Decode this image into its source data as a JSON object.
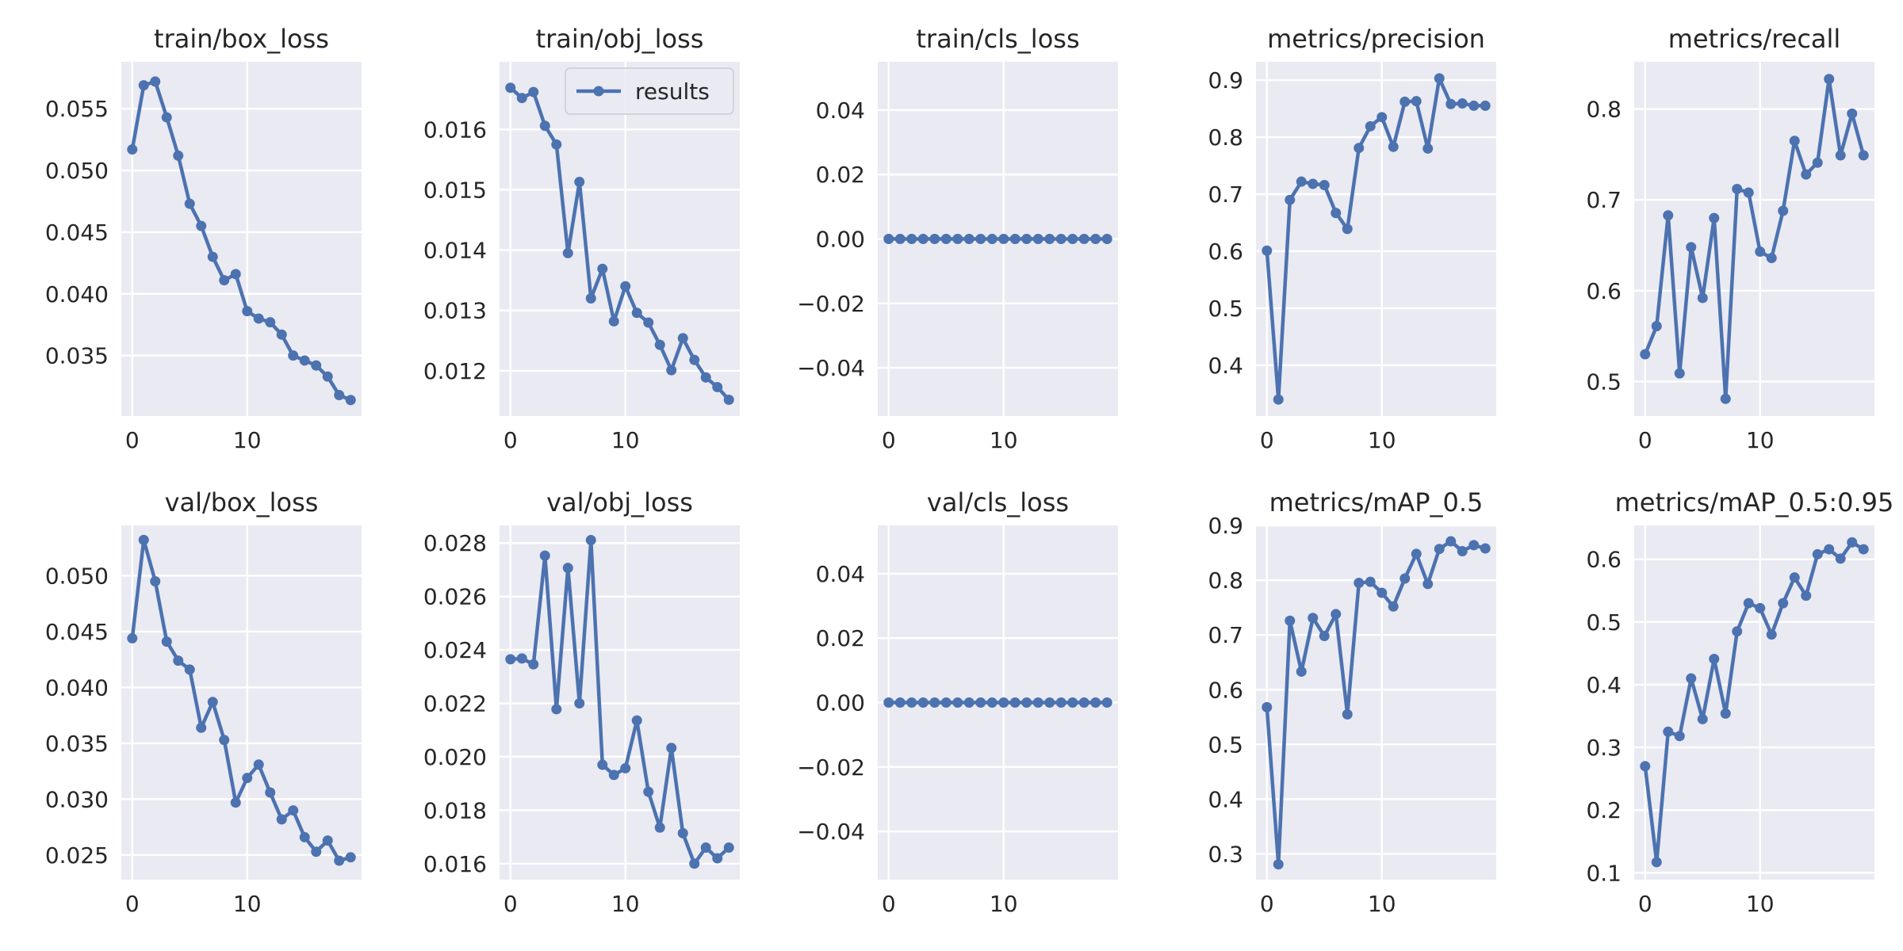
{
  "style": {
    "line_color": "#4c72b0",
    "axes_facecolor": "#eaeaf2",
    "grid_color": "#ffffff",
    "text_color": "#262626"
  },
  "legend": {
    "label": "results",
    "placement": "upper right",
    "panel": "train/obj_loss"
  },
  "chart_data": [
    {
      "type": "line",
      "title": "train/box_loss",
      "xlim": [
        -0.95,
        19.95
      ],
      "ylim": [
        0.0301,
        0.0588
      ],
      "xticks": [
        0,
        10
      ],
      "xtick_labels": [
        "0",
        "10"
      ],
      "yticks": [
        0.035,
        0.04,
        0.045,
        0.05,
        0.055
      ],
      "ytick_labels": [
        "0.035",
        "0.040",
        "0.045",
        "0.050",
        "0.055"
      ],
      "grid": true,
      "series": [
        {
          "name": "results",
          "x": [
            0,
            1,
            2,
            3,
            4,
            5,
            6,
            7,
            8,
            9,
            10,
            11,
            12,
            13,
            14,
            15,
            16,
            17,
            18,
            19
          ],
          "y": [
            0.0517,
            0.0569,
            0.0572,
            0.0543,
            0.0512,
            0.0473,
            0.0455,
            0.043,
            0.0411,
            0.0416,
            0.0386,
            0.038,
            0.0377,
            0.0367,
            0.035,
            0.0346,
            0.0342,
            0.0333,
            0.0318,
            0.0314
          ]
        }
      ]
    },
    {
      "type": "line",
      "title": "train/obj_loss",
      "xlim": [
        -0.95,
        19.95
      ],
      "ylim": [
        0.01125,
        0.01712
      ],
      "xticks": [
        0,
        10
      ],
      "xtick_labels": [
        "0",
        "10"
      ],
      "yticks": [
        0.012,
        0.013,
        0.014,
        0.015,
        0.016
      ],
      "ytick_labels": [
        "0.012",
        "0.013",
        "0.014",
        "0.015",
        "0.016"
      ],
      "grid": true,
      "series": [
        {
          "name": "results",
          "x": [
            0,
            1,
            2,
            3,
            4,
            5,
            6,
            7,
            8,
            9,
            10,
            11,
            12,
            13,
            14,
            15,
            16,
            17,
            18,
            19
          ],
          "y": [
            0.01669,
            0.01652,
            0.01662,
            0.01606,
            0.01575,
            0.01395,
            0.01513,
            0.0132,
            0.01369,
            0.01282,
            0.0134,
            0.01296,
            0.0128,
            0.01243,
            0.01201,
            0.01254,
            0.01218,
            0.01189,
            0.01173,
            0.01152
          ]
        }
      ]
    },
    {
      "type": "line",
      "title": "train/cls_loss",
      "xlim": [
        -0.95,
        19.95
      ],
      "ylim": [
        -0.055,
        0.055
      ],
      "xticks": [
        0,
        10
      ],
      "xtick_labels": [
        "0",
        "10"
      ],
      "yticks": [
        -0.04,
        -0.02,
        0.0,
        0.02,
        0.04
      ],
      "ytick_labels": [
        "−0.04",
        "−0.02",
        "0.00",
        "0.02",
        "0.04"
      ],
      "grid": true,
      "series": [
        {
          "name": "results",
          "x": [
            0,
            1,
            2,
            3,
            4,
            5,
            6,
            7,
            8,
            9,
            10,
            11,
            12,
            13,
            14,
            15,
            16,
            17,
            18,
            19
          ],
          "y": [
            0,
            0,
            0,
            0,
            0,
            0,
            0,
            0,
            0,
            0,
            0,
            0,
            0,
            0,
            0,
            0,
            0,
            0,
            0,
            0
          ]
        }
      ]
    },
    {
      "type": "line",
      "title": "metrics/precision",
      "xlim": [
        -0.95,
        19.95
      ],
      "ylim": [
        0.311,
        0.932
      ],
      "xticks": [
        0,
        10
      ],
      "xtick_labels": [
        "0",
        "10"
      ],
      "yticks": [
        0.4,
        0.5,
        0.6,
        0.7,
        0.8,
        0.9
      ],
      "ytick_labels": [
        "0.4",
        "0.5",
        "0.6",
        "0.7",
        "0.8",
        "0.9"
      ],
      "grid": true,
      "series": [
        {
          "name": "results",
          "x": [
            0,
            1,
            2,
            3,
            4,
            5,
            6,
            7,
            8,
            9,
            10,
            11,
            12,
            13,
            14,
            15,
            16,
            17,
            18,
            19
          ],
          "y": [
            0.601,
            0.34,
            0.69,
            0.722,
            0.718,
            0.716,
            0.667,
            0.639,
            0.781,
            0.819,
            0.835,
            0.783,
            0.862,
            0.863,
            0.78,
            0.903,
            0.858,
            0.859,
            0.855,
            0.855
          ]
        }
      ]
    },
    {
      "type": "line",
      "title": "metrics/recall",
      "xlim": [
        -0.95,
        19.95
      ],
      "ylim": [
        0.462,
        0.852
      ],
      "xticks": [
        0,
        10
      ],
      "xtick_labels": [
        "0",
        "10"
      ],
      "yticks": [
        0.5,
        0.6,
        0.7,
        0.8
      ],
      "ytick_labels": [
        "0.5",
        "0.6",
        "0.7",
        "0.8"
      ],
      "grid": true,
      "series": [
        {
          "name": "results",
          "x": [
            0,
            1,
            2,
            3,
            4,
            5,
            6,
            7,
            8,
            9,
            10,
            11,
            12,
            13,
            14,
            15,
            16,
            17,
            18,
            19
          ],
          "y": [
            0.53,
            0.561,
            0.683,
            0.509,
            0.648,
            0.592,
            0.68,
            0.481,
            0.712,
            0.708,
            0.643,
            0.636,
            0.688,
            0.765,
            0.728,
            0.741,
            0.833,
            0.749,
            0.795,
            0.749
          ]
        }
      ]
    },
    {
      "type": "line",
      "title": "val/box_loss",
      "xlim": [
        -0.95,
        19.95
      ],
      "ylim": [
        0.0228,
        0.0545
      ],
      "xticks": [
        0,
        10
      ],
      "xtick_labels": [
        "0",
        "10"
      ],
      "yticks": [
        0.025,
        0.03,
        0.035,
        0.04,
        0.045,
        0.05
      ],
      "ytick_labels": [
        "0.025",
        "0.030",
        "0.035",
        "0.040",
        "0.045",
        "0.050"
      ],
      "grid": true,
      "series": [
        {
          "name": "results",
          "x": [
            0,
            1,
            2,
            3,
            4,
            5,
            6,
            7,
            8,
            9,
            10,
            11,
            12,
            13,
            14,
            15,
            16,
            17,
            18,
            19
          ],
          "y": [
            0.0444,
            0.0532,
            0.0495,
            0.0441,
            0.0424,
            0.0416,
            0.0364,
            0.0387,
            0.0353,
            0.0297,
            0.0319,
            0.0331,
            0.0306,
            0.0282,
            0.029,
            0.0266,
            0.0253,
            0.0263,
            0.0245,
            0.0248
          ]
        }
      ]
    },
    {
      "type": "line",
      "title": "val/obj_loss",
      "xlim": [
        -0.95,
        19.95
      ],
      "ylim": [
        0.0154,
        0.02866
      ],
      "xticks": [
        0,
        10
      ],
      "xtick_labels": [
        "0",
        "10"
      ],
      "yticks": [
        0.016,
        0.018,
        0.02,
        0.022,
        0.024,
        0.026,
        0.028
      ],
      "ytick_labels": [
        "0.016",
        "0.018",
        "0.020",
        "0.022",
        "0.024",
        "0.026",
        "0.028"
      ],
      "grid": true,
      "series": [
        {
          "name": "results",
          "x": [
            0,
            1,
            2,
            3,
            4,
            5,
            6,
            7,
            8,
            9,
            10,
            11,
            12,
            13,
            14,
            15,
            16,
            17,
            18,
            19
          ],
          "y": [
            0.02365,
            0.02368,
            0.02346,
            0.02753,
            0.02178,
            0.02707,
            0.022,
            0.02811,
            0.0197,
            0.01932,
            0.01957,
            0.02136,
            0.01869,
            0.01735,
            0.02033,
            0.01714,
            0.016,
            0.0166,
            0.0162,
            0.0166
          ]
        }
      ]
    },
    {
      "type": "line",
      "title": "val/cls_loss",
      "xlim": [
        -0.95,
        19.95
      ],
      "ylim": [
        -0.055,
        0.055
      ],
      "xticks": [
        0,
        10
      ],
      "xtick_labels": [
        "0",
        "10"
      ],
      "yticks": [
        -0.04,
        -0.02,
        0.0,
        0.02,
        0.04
      ],
      "ytick_labels": [
        "−0.04",
        "−0.02",
        "0.00",
        "0.02",
        "0.04"
      ],
      "grid": true,
      "series": [
        {
          "name": "results",
          "x": [
            0,
            1,
            2,
            3,
            4,
            5,
            6,
            7,
            8,
            9,
            10,
            11,
            12,
            13,
            14,
            15,
            16,
            17,
            18,
            19
          ],
          "y": [
            0,
            0,
            0,
            0,
            0,
            0,
            0,
            0,
            0,
            0,
            0,
            0,
            0,
            0,
            0,
            0,
            0,
            0,
            0,
            0
          ]
        }
      ]
    },
    {
      "type": "line",
      "title": "metrics/mAP_0.5",
      "xlim": [
        -0.95,
        19.95
      ],
      "ylim": [
        0.253,
        0.9
      ],
      "xticks": [
        0,
        10
      ],
      "xtick_labels": [
        "0",
        "10"
      ],
      "yticks": [
        0.3,
        0.4,
        0.5,
        0.6,
        0.7,
        0.8,
        0.9
      ],
      "ytick_labels": [
        "0.3",
        "0.4",
        "0.5",
        "0.6",
        "0.7",
        "0.8",
        "0.9"
      ],
      "grid": true,
      "series": [
        {
          "name": "results",
          "x": [
            0,
            1,
            2,
            3,
            4,
            5,
            6,
            7,
            8,
            9,
            10,
            11,
            12,
            13,
            14,
            15,
            16,
            17,
            18,
            19
          ],
          "y": [
            0.568,
            0.281,
            0.726,
            0.633,
            0.731,
            0.698,
            0.738,
            0.555,
            0.795,
            0.797,
            0.777,
            0.752,
            0.803,
            0.848,
            0.793,
            0.857,
            0.871,
            0.853,
            0.864,
            0.858
          ]
        }
      ]
    },
    {
      "type": "line",
      "title": "metrics/mAP_0.5:0.95",
      "xlim": [
        -0.95,
        19.95
      ],
      "ylim": [
        0.089,
        0.654
      ],
      "xticks": [
        0,
        10
      ],
      "xtick_labels": [
        "0",
        "10"
      ],
      "yticks": [
        0.1,
        0.2,
        0.3,
        0.4,
        0.5,
        0.6
      ],
      "ytick_labels": [
        "0.1",
        "0.2",
        "0.3",
        "0.4",
        "0.5",
        "0.6"
      ],
      "grid": true,
      "series": [
        {
          "name": "results",
          "x": [
            0,
            1,
            2,
            3,
            4,
            5,
            6,
            7,
            8,
            9,
            10,
            11,
            12,
            13,
            14,
            15,
            16,
            17,
            18,
            19
          ],
          "y": [
            0.27,
            0.117,
            0.325,
            0.318,
            0.41,
            0.345,
            0.441,
            0.354,
            0.485,
            0.53,
            0.522,
            0.48,
            0.53,
            0.571,
            0.542,
            0.608,
            0.616,
            0.601,
            0.627,
            0.616
          ]
        }
      ]
    }
  ]
}
